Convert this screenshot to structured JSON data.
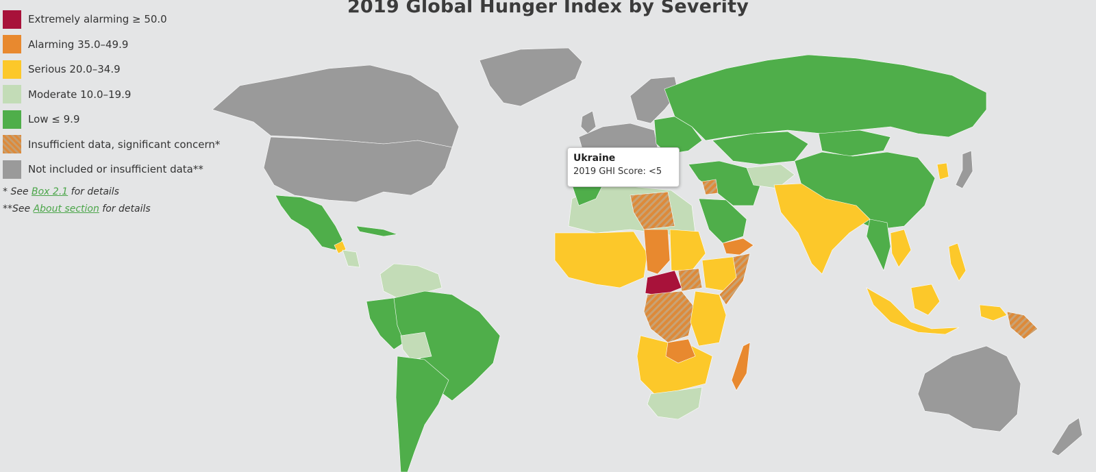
{
  "title": "2019 Global Hunger Index by Severity",
  "colors": {
    "extremely_alarming": "#a8123a",
    "alarming": "#e8892f",
    "serious": "#fcc82a",
    "moderate": "#c3dcb7",
    "low": "#4fae4a",
    "insufficient_concern": "#d38b45",
    "not_included": "#9a9a9a",
    "ocean": "#e4e5e6"
  },
  "legend": [
    {
      "label": "Extremely alarming ≥ 50.0",
      "color": "#a8123a",
      "pattern": false
    },
    {
      "label": "Alarming 35.0–49.9",
      "color": "#e8892f",
      "pattern": false
    },
    {
      "label": "Serious 20.0–34.9",
      "color": "#fcc82a",
      "pattern": false
    },
    {
      "label": "Moderate 10.0–19.9",
      "color": "#c3dcb7",
      "pattern": false
    },
    {
      "label": "Low ≤ 9.9",
      "color": "#4fae4a",
      "pattern": false
    },
    {
      "label": "Insufficient data, significant concern*",
      "color": "#d38b45",
      "pattern": true
    },
    {
      "label": "Not included or insufficient data**",
      "color": "#9a9a9a",
      "pattern": false
    }
  ],
  "notes": {
    "note1_prefix": "* See ",
    "note1_link": "Box 2.1",
    "note1_suffix": " for details",
    "note2_prefix": "**See ",
    "note2_link": "About section",
    "note2_suffix": " for details"
  },
  "tooltip": {
    "country": "Ukraine",
    "score": "2019 GHI Score: <5"
  }
}
